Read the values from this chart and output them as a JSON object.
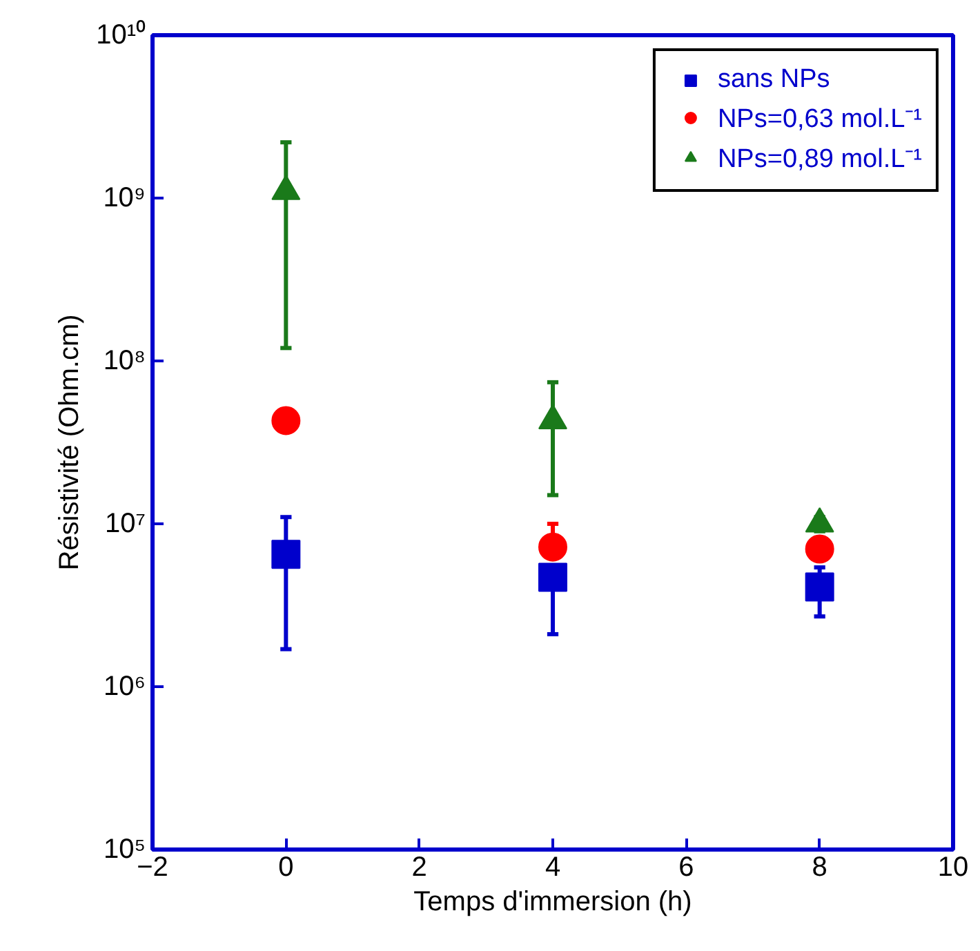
{
  "chart_data": {
    "type": "scatter",
    "xlabel": "Temps d'immersion (h)",
    "ylabel": "Résistivité (Ohm.cm)",
    "log": "y",
    "grid": false,
    "legend": "top right",
    "xlim": [
      -2,
      10
    ],
    "xticks": [
      -2,
      0,
      2,
      4,
      6,
      8,
      10
    ],
    "ylim": [
      100000,
      10000000000
    ],
    "yticks": [
      {
        "value": 100000,
        "label": "10⁵"
      },
      {
        "value": 1000000,
        "label": "10⁶"
      },
      {
        "value": 10000000,
        "label": "10⁷"
      },
      {
        "value": 100000000,
        "label": "10⁸"
      },
      {
        "value": 1000000000,
        "label": "10⁹"
      },
      {
        "value": 10000000000,
        "label": "10¹⁰"
      }
    ],
    "x": [
      0,
      4,
      8
    ],
    "series": [
      {
        "name": "sans NPs",
        "color": "#0000cc",
        "marker": "square",
        "values": [
          6500000,
          4700000,
          4100000
        ],
        "errors": [
          [
            1700000,
            11000000
          ],
          [
            2100000,
            4700000
          ],
          [
            2700000,
            5400000
          ]
        ]
      },
      {
        "name": "NPs=0,63 mol.L⁻¹",
        "color": "#ff0000",
        "marker": "circle",
        "values": [
          43000000,
          7200000,
          7000000
        ],
        "errors": [
          null,
          [
            7200000,
            10000000
          ],
          null
        ]
      },
      {
        "name": "NPs=0,89 mol.L⁻¹",
        "color": "#1a7a1a",
        "marker": "triangle",
        "values": [
          1100000000,
          43000000,
          10000000
        ],
        "errors": [
          [
            120000000,
            2200000000
          ],
          [
            15000000,
            74000000
          ],
          [
            9000000,
            11000000
          ]
        ]
      }
    ]
  }
}
